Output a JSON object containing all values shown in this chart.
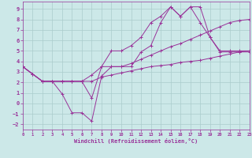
{
  "xlabel": "Windchill (Refroidissement éolien,°C)",
  "background_color": "#cce8e8",
  "grid_color": "#aacccc",
  "line_color": "#993399",
  "xlim": [
    0,
    23
  ],
  "ylim": [
    -2.5,
    9.7
  ],
  "xticks": [
    0,
    1,
    2,
    3,
    4,
    5,
    6,
    7,
    8,
    9,
    10,
    11,
    12,
    13,
    14,
    15,
    16,
    17,
    18,
    19,
    20,
    21,
    22,
    23
  ],
  "yticks": [
    -2,
    -1,
    0,
    1,
    2,
    3,
    4,
    5,
    6,
    7,
    8,
    9
  ],
  "lines": [
    [
      3.5,
      2.8,
      2.1,
      2.1,
      0.9,
      -0.9,
      -0.9,
      -1.7,
      2.6,
      3.5,
      3.5,
      3.5,
      4.9,
      5.5,
      7.7,
      9.2,
      8.3,
      9.2,
      9.2,
      6.3,
      5.0,
      5.0,
      5.0,
      5.0
    ],
    [
      3.5,
      2.8,
      2.1,
      2.1,
      2.1,
      2.1,
      2.1,
      0.5,
      3.5,
      5.0,
      5.0,
      5.5,
      6.3,
      7.7,
      8.3,
      9.2,
      8.3,
      9.2,
      7.7,
      6.3,
      4.9,
      4.9,
      4.9,
      4.9
    ],
    [
      3.5,
      2.8,
      2.1,
      2.1,
      2.1,
      2.1,
      2.1,
      2.7,
      3.5,
      3.5,
      3.5,
      3.8,
      4.2,
      4.6,
      5.0,
      5.4,
      5.7,
      6.1,
      6.5,
      6.9,
      7.3,
      7.7,
      7.9,
      8.0
    ],
    [
      3.5,
      2.8,
      2.1,
      2.1,
      2.1,
      2.1,
      2.1,
      2.1,
      2.5,
      2.7,
      2.9,
      3.1,
      3.3,
      3.5,
      3.6,
      3.7,
      3.9,
      4.0,
      4.1,
      4.3,
      4.5,
      4.7,
      4.9,
      5.0
    ]
  ]
}
